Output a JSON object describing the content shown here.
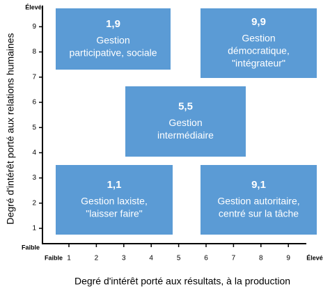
{
  "x_axis": {
    "title": "Degré d'intérêt porté aux résultats, à la production",
    "low_label": "Faible",
    "high_label": "Élevé",
    "ticks": [
      1,
      2,
      3,
      4,
      5,
      6,
      7,
      8,
      9
    ]
  },
  "y_axis": {
    "title": "Degré d'intérêt porté aux relations humaines",
    "low_label": "Faible",
    "high_label": "Élevé",
    "ticks": [
      1,
      2,
      3,
      4,
      5,
      6,
      7,
      8,
      9
    ]
  },
  "boxes": [
    {
      "grade": "1,9",
      "lines": [
        "Gestion",
        "participative, sociale"
      ]
    },
    {
      "grade": "9,9",
      "lines": [
        "Gestion",
        "démocratique,",
        "\"intégrateur\""
      ]
    },
    {
      "grade": "5,5",
      "lines": [
        "Gestion",
        "intermédiaire"
      ]
    },
    {
      "grade": "1,1",
      "lines": [
        "Gestion laxiste,",
        "\"laisser faire\""
      ]
    },
    {
      "grade": "9,1",
      "lines": [
        "Gestion autoritaire,",
        "centré sur la tâche"
      ]
    }
  ]
}
